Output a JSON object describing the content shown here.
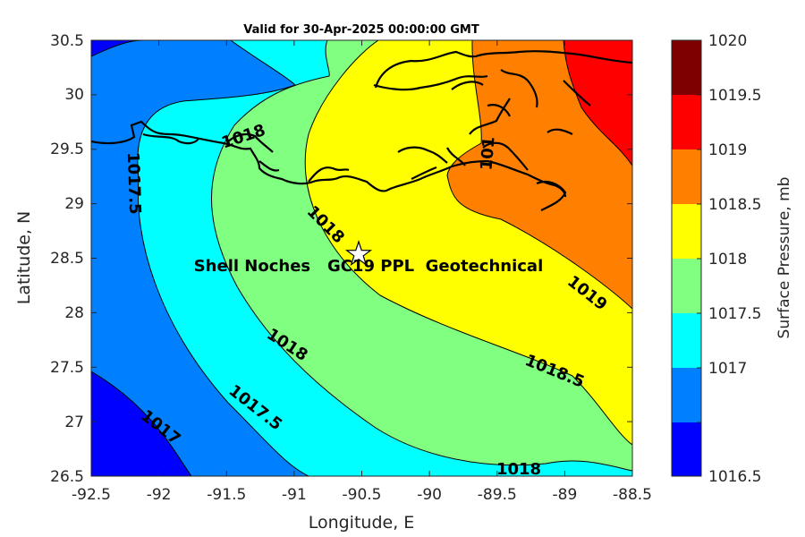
{
  "title": "Valid for 30-Apr-2025 00:00:00 GMT",
  "xlabel": "Longitude, E",
  "ylabel": "Latitude, N",
  "x_ticks": [
    "-92.5",
    "-92",
    "-91.5",
    "-91",
    "-90.5",
    "-90",
    "-89.5",
    "-89",
    "-88.5"
  ],
  "y_ticks": [
    "26.5",
    "27",
    "27.5",
    "28",
    "28.5",
    "29",
    "29.5",
    "30",
    "30.5"
  ],
  "site_label": "Shell Noches   GC19 PPL  Geotechnical",
  "site_marker": "star-icon",
  "contour_labels": [
    "1018",
    "1017.5",
    "1018",
    "1018",
    "1017.5",
    "1017",
    "1018.5",
    "1019",
    "1018",
    "101"
  ],
  "colorbar": {
    "title": "Surface Pressure, mb",
    "ticks": [
      "1020",
      "1019.5",
      "1019",
      "1018.5",
      "1018",
      "1017.5",
      "1017",
      "1016.5"
    ],
    "colors": [
      "#7f0000",
      "#ff0000",
      "#ff8000",
      "#ffff00",
      "#80ff80",
      "#00ffff",
      "#0080ff",
      "#0000ff"
    ]
  },
  "chart_data": {
    "type": "contour",
    "variable": "Surface Pressure, mb",
    "xlim": [
      -92.5,
      -88.5
    ],
    "ylim": [
      26.5,
      30.5
    ],
    "levels": [
      1016.5,
      1017,
      1017.5,
      1018,
      1018.5,
      1019,
      1019.5,
      1020
    ],
    "site": {
      "name": "Shell Noches   GC19 PPL  Geotechnical",
      "lon": -90.5,
      "lat": 28.55
    }
  }
}
